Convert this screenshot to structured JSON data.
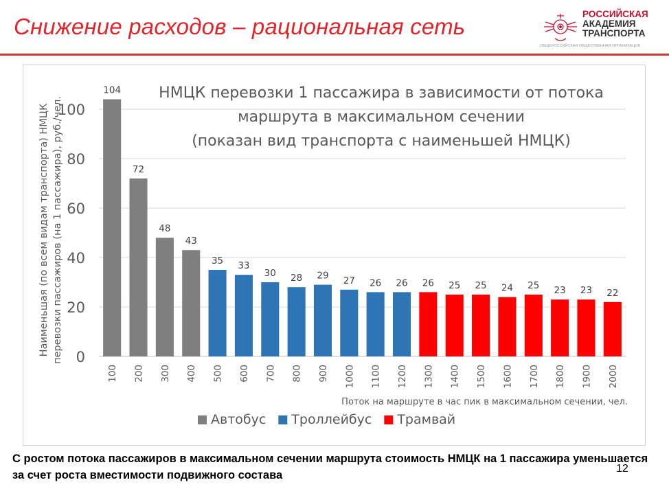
{
  "slide": {
    "title": "Снижение расходов – рациональная сеть",
    "logo": {
      "line1": "РОССИЙСКАЯ",
      "line2": "АКАДЕМИЯ",
      "line3": "ТРАНСПОРТА",
      "subtitle": "ОБЩЕРОССИЙСКАЯ ОБЩЕСТВЕННАЯ ОРГАНИЗАЦИЯ"
    },
    "caption": "С ростом потока пассажиров в максимальном сечении маршрута стоимость НМЦК на 1 пассажира уменьшается за счет роста вместимости подвижного состава",
    "page_number": "12"
  },
  "colors": {
    "title": "#e0262b",
    "rule": "#c83a2f",
    "bus": "#7f7f7f",
    "trolleybus": "#2e75b6",
    "tram": "#ff0000"
  },
  "chart_data": {
    "type": "bar",
    "title_lines": [
      "НМЦК перевозки 1 пассажира в зависимости от потока",
      "маршрута в максимальном сечении",
      "(показан вид транспорта с наименьшей НМЦК)"
    ],
    "ylabel_lines": [
      "Наименьшая (по всем видам транспорта) НМЦК",
      "перевозки пассажиров (на 1 пассажира), руб./чел."
    ],
    "xlabel": "Поток на маршруте в час пик в максимальном сечении, чел.",
    "ylim": [
      0,
      110
    ],
    "yticks": [
      0,
      20,
      40,
      60,
      80,
      100
    ],
    "grid": true,
    "legend_position": "bottom",
    "categories": [
      "100",
      "200",
      "300",
      "400",
      "500",
      "600",
      "700",
      "800",
      "900",
      "1000",
      "1100",
      "1200",
      "1300",
      "1400",
      "1500",
      "1600",
      "1700",
      "1800",
      "1900",
      "2000"
    ],
    "values": [
      104,
      72,
      48,
      43,
      35,
      33,
      30,
      28,
      29,
      27,
      26,
      26,
      26,
      25,
      25,
      24,
      25,
      23,
      23,
      22
    ],
    "value_labels": [
      "104",
      "72",
      "48",
      "43",
      "35",
      "33",
      "30",
      "28",
      "29",
      "27",
      "26",
      "26",
      "26",
      "25",
      "25",
      "24",
      "25",
      "23",
      "23",
      "22"
    ],
    "series_by_index": [
      "Автобус",
      "Автобус",
      "Автобус",
      "Автобус",
      "Троллейбус",
      "Троллейбус",
      "Троллейбус",
      "Троллейбус",
      "Троллейбус",
      "Троллейбус",
      "Троллейбус",
      "Троллейбус",
      "Трамвай",
      "Трамвай",
      "Трамвай",
      "Трамвай",
      "Трамвай",
      "Трамвай",
      "Трамвай",
      "Трамвай"
    ],
    "legend": [
      {
        "name": "Автобус",
        "color": "#7f7f7f"
      },
      {
        "name": "Троллейбус",
        "color": "#2e75b6"
      },
      {
        "name": "Трамвай",
        "color": "#ff0000"
      }
    ]
  }
}
